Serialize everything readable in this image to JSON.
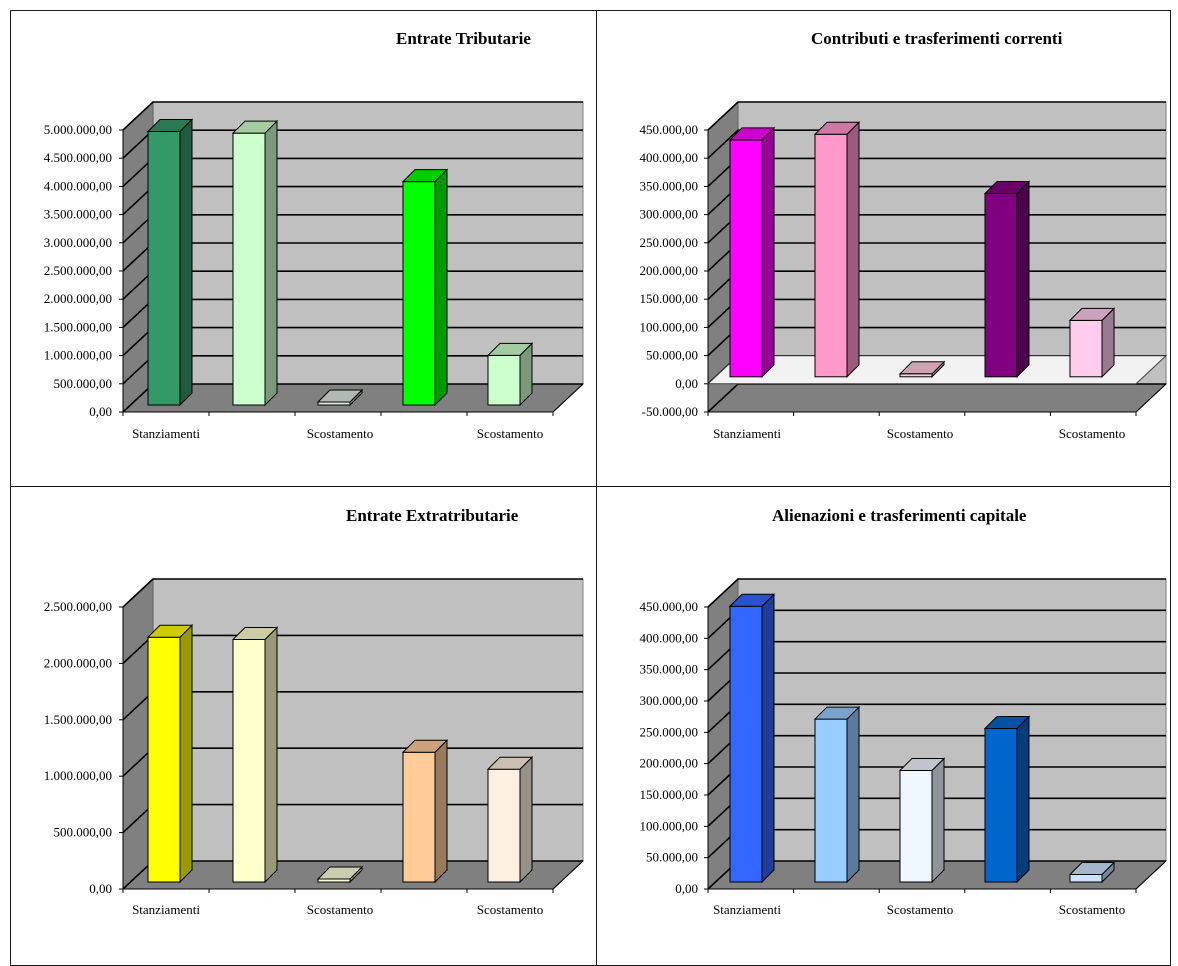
{
  "chart_data": [
    {
      "type": "bar",
      "title": "Entrate Tributarie",
      "ylim": [
        0,
        5000000
      ],
      "yticks": [
        "0,00",
        "500.000,00",
        "1.000.000,00",
        "1.500.000,00",
        "2.000.000,00",
        "2.500.000,00",
        "3.000.000,00",
        "3.500.000,00",
        "4.000.000,00",
        "4.500.000,00",
        "5.000.000,00"
      ],
      "xtick_labels": [
        "Stanziamenti",
        "Scostamento",
        "Scostamento"
      ],
      "values": [
        4850000,
        4820000,
        0,
        3960000,
        880000
      ],
      "colors": [
        "#339966",
        "#ccffcc",
        "#dde8dd",
        "#00ff00",
        "#ccffcc"
      ],
      "grid": true
    },
    {
      "type": "bar",
      "title": "Contributi e trasferimenti correnti",
      "ylim": [
        -50000,
        450000
      ],
      "yticks": [
        "-50.000,00",
        "0,00",
        "50.000,00",
        "100.000,00",
        "150.000,00",
        "200.000,00",
        "250.000,00",
        "300.000,00",
        "350.000,00",
        "400.000,00",
        "450.000,00"
      ],
      "xtick_labels": [
        "Stanziamenti",
        "Scostamento",
        "Scostamento"
      ],
      "values": [
        420000,
        430000,
        5000,
        325000,
        100000
      ],
      "colors": [
        "#ff00ff",
        "#ff99cc",
        "#ffccdd",
        "#800080",
        "#ffccee"
      ],
      "grid": true
    },
    {
      "type": "bar",
      "title": "Entrate Extratributarie",
      "ylim": [
        0,
        2500000
      ],
      "yticks": [
        "0,00",
        "500.000,00",
        "1.000.000,00",
        "1.500.000,00",
        "2.000.000,00",
        "2.500.000,00"
      ],
      "xtick_labels": [
        "Stanziamenti",
        "Scostamento",
        "Scostamento"
      ],
      "values": [
        2170000,
        2150000,
        0,
        1150000,
        1000000
      ],
      "colors": [
        "#ffff00",
        "#ffffcc",
        "#ffffdd",
        "#ffcc99",
        "#fff0e0"
      ],
      "grid": true
    },
    {
      "type": "bar",
      "title": "Alienazioni e trasferimenti capitale",
      "ylim": [
        0,
        450000
      ],
      "yticks": [
        "0,00",
        "50.000,00",
        "100.000,00",
        "150.000,00",
        "200.000,00",
        "250.000,00",
        "300.000,00",
        "350.000,00",
        "400.000,00",
        "450.000,00"
      ],
      "xtick_labels": [
        "Stanziamenti",
        "Scostamento",
        "Scostamento"
      ],
      "values": [
        440000,
        260000,
        178000,
        245000,
        12000
      ],
      "colors": [
        "#3366ff",
        "#99ccff",
        "#eef6ff",
        "#0066cc",
        "#cce4ff"
      ],
      "grid": true
    }
  ]
}
